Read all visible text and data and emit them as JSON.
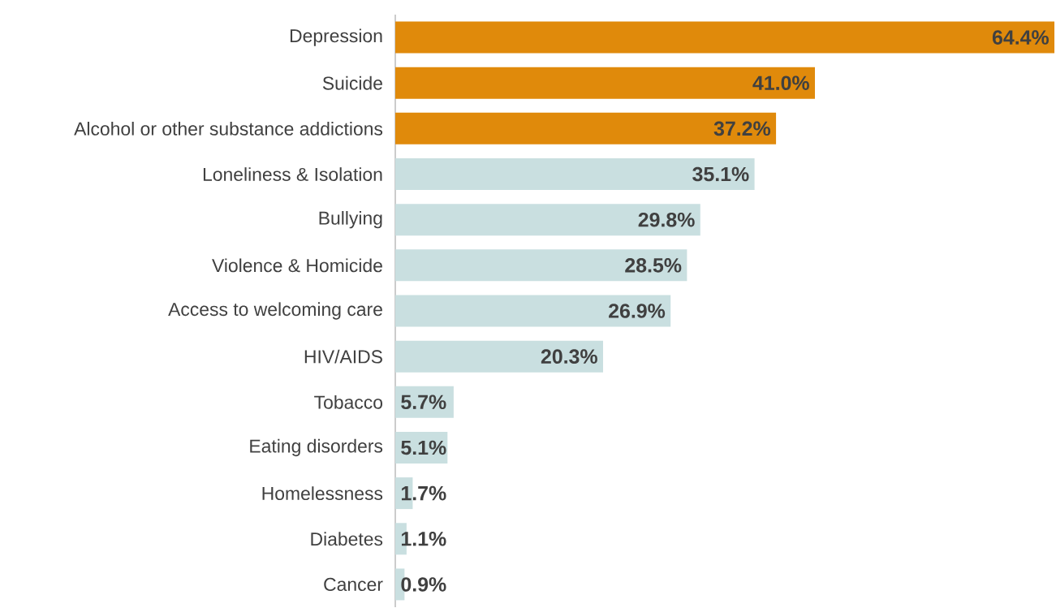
{
  "chart_data": {
    "type": "bar",
    "orientation": "horizontal",
    "categories": [
      "Depression",
      "Suicide",
      "Alcohol or other substance addictions",
      "Loneliness & Isolation",
      "Bullying",
      "Violence & Homicide",
      "Access to welcoming care",
      "HIV/AIDS",
      "Tobacco",
      "Eating disorders",
      "Homelessness",
      "Diabetes",
      "Cancer"
    ],
    "values": [
      64.4,
      41.0,
      37.2,
      35.1,
      29.8,
      28.5,
      26.9,
      20.3,
      5.7,
      5.1,
      1.7,
      1.1,
      0.9
    ],
    "value_labels": [
      "64.4%",
      "41.0%",
      "37.2%",
      "35.1%",
      "29.8%",
      "28.5%",
      "26.9%",
      "20.3%",
      "5.7%",
      "5.1%",
      "1.7%",
      "1.1%",
      "0.9%"
    ],
    "colors": [
      "#e08a0b",
      "#e08a0b",
      "#e08a0b",
      "#c9dfe0",
      "#c9dfe0",
      "#c9dfe0",
      "#c9dfe0",
      "#c9dfe0",
      "#c9dfe0",
      "#c9dfe0",
      "#c9dfe0",
      "#c9dfe0",
      "#c9dfe0"
    ]
  }
}
